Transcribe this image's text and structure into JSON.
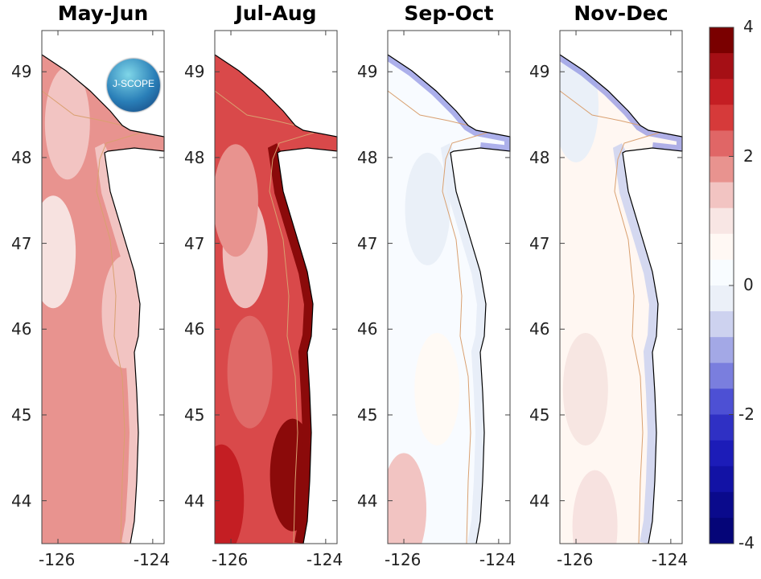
{
  "panels": [
    {
      "title": "May-Jun",
      "base": "#e8938f",
      "coast": "#f2c4c2",
      "blobs": [
        {
          "lon": -126.1,
          "lat": 46.9,
          "c": "#f7e2e0"
        },
        {
          "lon": -125.8,
          "lat": 48.4,
          "c": "#f2c4c2"
        },
        {
          "lon": -124.6,
          "lat": 46.2,
          "c": "#f2c4c2"
        }
      ]
    },
    {
      "title": "Jul-Aug",
      "base": "#d9494a",
      "coast": "#8b0a0a",
      "blobs": [
        {
          "lon": -125.7,
          "lat": 46.9,
          "c": "#f0bdbb"
        },
        {
          "lon": -125.9,
          "lat": 47.5,
          "c": "#e8938f"
        },
        {
          "lon": -125.6,
          "lat": 45.5,
          "c": "#e06a68"
        },
        {
          "lon": -124.7,
          "lat": 44.3,
          "c": "#8b0a0a"
        },
        {
          "lon": -126.2,
          "lat": 44.0,
          "c": "#c41e23"
        }
      ]
    },
    {
      "title": "Sep-Oct",
      "base": "#f8fbff",
      "coast": "#e8eef8",
      "blobs": [
        {
          "lon": -126.0,
          "lat": 43.9,
          "c": "#f2c4c2"
        },
        {
          "lon": -125.3,
          "lat": 45.3,
          "c": "#fffaf5"
        },
        {
          "lon": -125.5,
          "lat": 47.4,
          "c": "#eaf0f8"
        }
      ]
    },
    {
      "title": "Nov-Dec",
      "base": "#fff7f2",
      "coast": "#d4d8f0",
      "blobs": [
        {
          "lon": -125.8,
          "lat": 45.3,
          "c": "#f7e6e2"
        },
        {
          "lon": -125.6,
          "lat": 43.7,
          "c": "#f7e2e0"
        },
        {
          "lon": -126.0,
          "lat": 48.6,
          "c": "#eaf0f8"
        }
      ]
    }
  ],
  "axes": {
    "lat_ticks": [
      "49",
      "48",
      "47",
      "46",
      "45",
      "44"
    ],
    "lon_ticks": [
      "-126",
      "-124"
    ],
    "lat_range": [
      43.5,
      49.48
    ],
    "lon_range": [
      -126.34,
      -123.76
    ]
  },
  "logo": {
    "text": "J-SCOPE"
  },
  "colorbar": {
    "min": -4,
    "max": 4,
    "ticks": [
      "4",
      "2",
      "0",
      "-2",
      "-4"
    ],
    "colors": [
      "#7a0000",
      "#a50f15",
      "#c41e23",
      "#d63a3a",
      "#e06666",
      "#e8938f",
      "#f2c4c2",
      "#f8e6e4",
      "#fff8f4",
      "#f8fcff",
      "#ebf0f8",
      "#cdd2ef",
      "#a3a8e6",
      "#7a7ede",
      "#4d50d4",
      "#2f30c4",
      "#1c1cb8",
      "#1212a5",
      "#0a0a8c",
      "#050578"
    ]
  },
  "colors": {
    "coastline": "#000000",
    "isobath": "#d9a070",
    "strait_blue": "#7a7ede"
  }
}
